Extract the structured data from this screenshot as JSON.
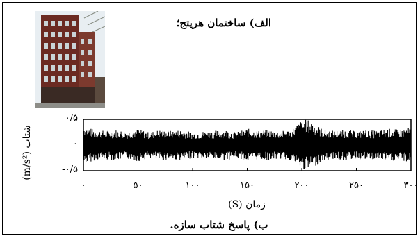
{
  "caption_a": "الف) ساختمان هریتج؛",
  "caption_b": "ب) پاسخ شتاب سازه.",
  "chart_data": {
    "type": "line",
    "title": "",
    "xlabel": "زمان (S)",
    "ylabel": "شتاب (m/s²)",
    "xlim": [
      0,
      300
    ],
    "ylim": [
      -0.5,
      0.5
    ],
    "xtick_labels": [
      "۰",
      "۵۰",
      "۱۰۰",
      "۱۵۰",
      "۲۰۰",
      "۲۵۰",
      "۳۰۰"
    ],
    "xtick_values": [
      0,
      50,
      100,
      150,
      200,
      250,
      300
    ],
    "ytick_labels": [
      "۰/۵",
      "۰",
      "-۰/۵"
    ],
    "ytick_values": [
      0.5,
      0,
      -0.5
    ],
    "series": [
      {
        "color": "#000000",
        "x": [
          0,
          10,
          20,
          30,
          40,
          50,
          60,
          70,
          80,
          90,
          100,
          110,
          120,
          130,
          140,
          150,
          160,
          170,
          180,
          190,
          200,
          205,
          210,
          220,
          230,
          240,
          250,
          260,
          270,
          280,
          290,
          300
        ],
        "envelope": [
          0.38,
          0.3,
          0.28,
          0.3,
          0.27,
          0.32,
          0.25,
          0.3,
          0.28,
          0.3,
          0.25,
          0.27,
          0.28,
          0.3,
          0.25,
          0.32,
          0.28,
          0.3,
          0.27,
          0.3,
          0.48,
          0.5,
          0.45,
          0.3,
          0.28,
          0.3,
          0.27,
          0.3,
          0.28,
          0.32,
          0.3,
          0.35
        ]
      }
    ]
  }
}
